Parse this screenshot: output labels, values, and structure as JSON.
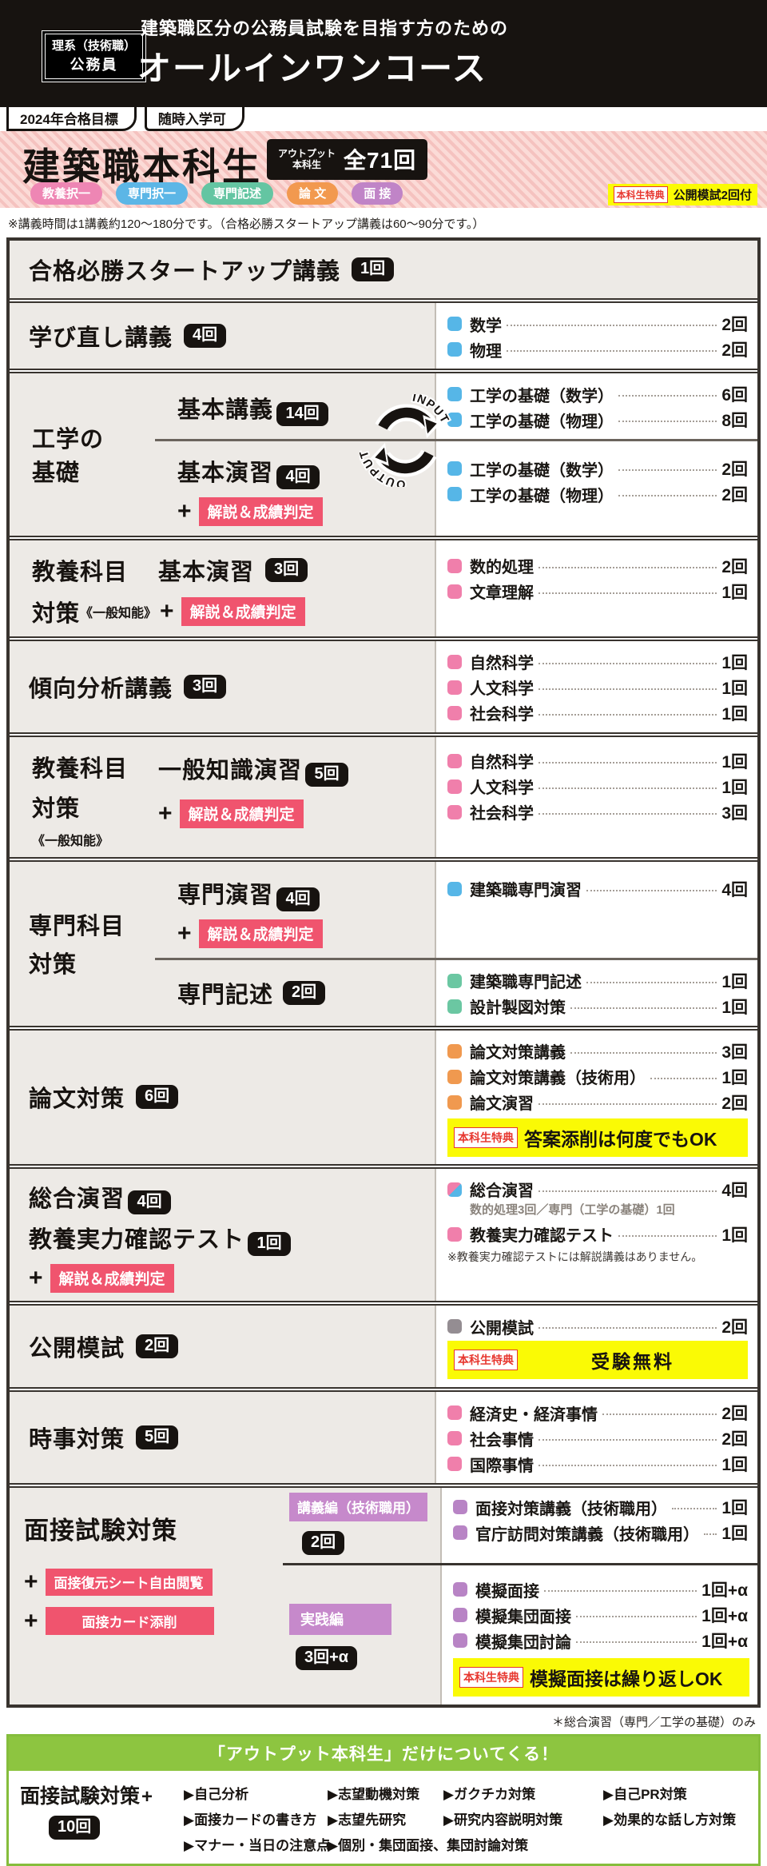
{
  "colors": {
    "blue": "#56b6e7",
    "pink": "#f07fab",
    "green": "#6bc7a2",
    "orange": "#f0994f",
    "purple": "#b884c5",
    "gray": "#948d92"
  },
  "header": {
    "badge_line1": "理系（技術職）",
    "badge_line2": "公務員",
    "tagline": "建築職区分の公務員試験を目指す方のための",
    "course_name": "オールインワンコース",
    "tab_goal": "2024年合格目標",
    "tab_entry": "随時入学可"
  },
  "banner": {
    "title": "建築職本科生",
    "output_label_1": "アウトプット",
    "output_label_2": "本科生",
    "total": "全71回",
    "tags": [
      {
        "label": "教養択一",
        "color": "#ee86b4"
      },
      {
        "label": "専門択一",
        "color": "#5cb6e6"
      },
      {
        "label": "専門記述",
        "color": "#64c5a2"
      },
      {
        "label": "論 文",
        "color": "#f2994f"
      },
      {
        "label": "面 接",
        "color": "#c084c7"
      }
    ],
    "benefit_label": "本科生特典",
    "benefit_text": "公開模試2回付"
  },
  "lecture_note": "※講義時間は1講義約120〜180分です。（合格必勝スタートアップ講義は60〜90分です。）",
  "rows": {
    "startup": {
      "title": "合格必勝スタートアップ講義",
      "count": "1回"
    },
    "manabi": {
      "title": "学び直し講義",
      "count": "4回",
      "items": [
        {
          "c": "blue",
          "label": "数学",
          "n": "2回"
        },
        {
          "c": "blue",
          "label": "物理",
          "n": "2回"
        }
      ]
    },
    "kogaku": {
      "side1": "工学の",
      "side2": "基礎",
      "io_input": "INPUT",
      "io_output": "OUTPUT",
      "kougi": {
        "title": "基本講義",
        "count": "14回",
        "items": [
          {
            "c": "blue",
            "label": "工学の基礎（数学）",
            "n": "6回"
          },
          {
            "c": "blue",
            "label": "工学の基礎（物理）",
            "n": "8回"
          }
        ]
      },
      "enshu": {
        "title": "基本演習",
        "count": "4回",
        "plus": "+",
        "badge": "解説＆成績判定",
        "items": [
          {
            "c": "blue",
            "label": "工学の基礎（数学）",
            "n": "2回"
          },
          {
            "c": "blue",
            "label": "工学の基礎（物理）",
            "n": "2回"
          }
        ]
      }
    },
    "kyoyo1": {
      "t1": "教養科目",
      "t2": "対策",
      "small": "《一般知能》",
      "mid": "基本演習",
      "count": "3回",
      "plus": "+",
      "badge": "解説＆成績判定",
      "items": [
        {
          "c": "pink",
          "label": "数的処理",
          "n": "2回"
        },
        {
          "c": "pink",
          "label": "文章理解",
          "n": "1回"
        }
      ]
    },
    "keiko": {
      "title": "傾向分析講義",
      "count": "3回",
      "items": [
        {
          "c": "pink",
          "label": "自然科学",
          "n": "1回"
        },
        {
          "c": "pink",
          "label": "人文科学",
          "n": "1回"
        },
        {
          "c": "pink",
          "label": "社会科学",
          "n": "1回"
        }
      ]
    },
    "kyoyo2": {
      "t1": "教養科目",
      "t2": "対策",
      "small": "《一般知能》",
      "mid": "一般知識演習",
      "count": "5回",
      "plus": "+",
      "badge": "解説＆成績判定",
      "items": [
        {
          "c": "pink",
          "label": "自然科学",
          "n": "1回"
        },
        {
          "c": "pink",
          "label": "人文科学",
          "n": "1回"
        },
        {
          "c": "pink",
          "label": "社会科学",
          "n": "3回"
        }
      ]
    },
    "senmon": {
      "side1": "専門科目",
      "side2": "対策",
      "enshu": {
        "title": "専門演習",
        "count": "4回",
        "plus": "+",
        "badge": "解説＆成績判定",
        "items": [
          {
            "c": "blue",
            "label": "建築職専門演習",
            "n": "4回"
          }
        ]
      },
      "kijutsu": {
        "title": "専門記述",
        "count": "2回",
        "items": [
          {
            "c": "green",
            "label": "建築職専門記述",
            "n": "1回"
          },
          {
            "c": "green",
            "label": "設計製図対策",
            "n": "1回"
          }
        ]
      }
    },
    "ronbun": {
      "title": "論文対策",
      "count": "6回",
      "items": [
        {
          "c": "orange",
          "label": "論文対策講義",
          "n": "3回"
        },
        {
          "c": "orange",
          "label": "論文対策講義（技術用）",
          "n": "1回"
        },
        {
          "c": "orange",
          "label": "論文演習",
          "n": "2回"
        }
      ],
      "benefit_label": "本科生特典",
      "benefit_text": "答案添削は何度でもOK"
    },
    "sogo": {
      "t1": "総合演習",
      "c1": "4回",
      "t2": "教養実力確認テスト",
      "c2": "1回",
      "plus": "+",
      "badge": "解説＆成績判定",
      "items": [
        {
          "c": "dual",
          "label": "総合演習",
          "n": "4回",
          "sub": "数的処理3回／専門（工学の基礎）1回"
        },
        {
          "c": "pink",
          "label": "教養実力確認テスト",
          "n": "1回"
        }
      ],
      "note": "※教養実力確認テストには解説講義はありません。"
    },
    "mosi": {
      "title": "公開模試",
      "count": "2回",
      "items": [
        {
          "c": "gray",
          "label": "公開模試",
          "n": "2回"
        }
      ],
      "benefit_label": "本科生特典",
      "benefit_text": "受験無料"
    },
    "jiji": {
      "title": "時事対策",
      "count": "5回",
      "items": [
        {
          "c": "pink",
          "label": "経済史・経済事情",
          "n": "2回"
        },
        {
          "c": "pink",
          "label": "社会事情",
          "n": "2回"
        },
        {
          "c": "pink",
          "label": "国際事情",
          "n": "1回"
        }
      ]
    },
    "mensetsu": {
      "title": "面接試験対策",
      "plus1": "+",
      "badge1": "面接復元シート自由閲覧",
      "plus2": "+",
      "badge2": "面接カード添削",
      "kougihen": {
        "badge": "講義編（技術職用）",
        "count": "2回",
        "items": [
          {
            "c": "purple",
            "label": "面接対策講義（技術職用）",
            "n": "1回"
          },
          {
            "c": "purple",
            "label": "官庁訪問対策講義（技術職用）",
            "n": "1回"
          }
        ]
      },
      "jissen": {
        "badge": "実践編",
        "count": "3回+α",
        "items": [
          {
            "c": "purple",
            "label": "模擬面接",
            "n": "1回+α"
          },
          {
            "c": "purple",
            "label": "模擬集団面接",
            "n": "1回+α"
          },
          {
            "c": "purple",
            "label": "模擬集団討論",
            "n": "1回+α"
          }
        ],
        "benefit_label": "本科生特典",
        "benefit_text": "模擬面接は繰り返しOK"
      }
    }
  },
  "footnote": "＊総合演習（専門／工学の基礎）のみ",
  "bottom_box": {
    "header": "「アウトプット本科生」だけについてくる！",
    "title": "面接試験対策",
    "plus_mark": "+",
    "count": "10回",
    "bullet_rows": [
      [
        "自己分析",
        "志望動機対策",
        "ガクチカ対策",
        "自己PR対策"
      ],
      [
        "面接カードの書き方",
        "志望先研究",
        "研究内容説明対策",
        "効果的な話し方対策"
      ],
      [
        "マナー・当日の注意点",
        "個別・集団面接、集団討論対策"
      ]
    ]
  }
}
